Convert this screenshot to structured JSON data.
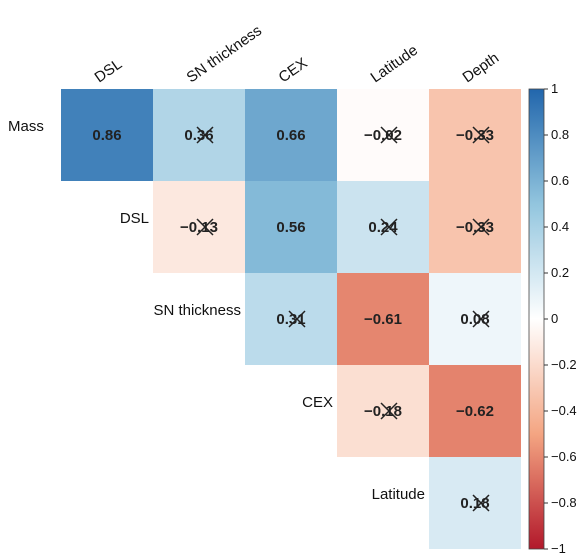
{
  "chart_data": {
    "type": "heatmap",
    "layout": "upper-triangle",
    "columns": [
      "DSL",
      "SN thickness",
      "CEX",
      "Latitude",
      "Depth"
    ],
    "rows": [
      "Mass",
      "DSL",
      "SN thickness",
      "CEX",
      "Latitude"
    ],
    "cells": [
      {
        "row": 0,
        "col": 0,
        "value": 0.86,
        "label": "0.86",
        "crossed": false
      },
      {
        "row": 0,
        "col": 1,
        "value": 0.36,
        "label": "0.36",
        "crossed": true
      },
      {
        "row": 0,
        "col": 2,
        "value": 0.66,
        "label": "0.66",
        "crossed": false
      },
      {
        "row": 0,
        "col": 3,
        "value": -0.02,
        "label": "-0.02",
        "crossed": true
      },
      {
        "row": 0,
        "col": 4,
        "value": -0.33,
        "label": "-0.33",
        "crossed": true
      },
      {
        "row": 1,
        "col": 1,
        "value": -0.13,
        "label": "-0.13",
        "crossed": true
      },
      {
        "row": 1,
        "col": 2,
        "value": 0.56,
        "label": "0.56",
        "crossed": false
      },
      {
        "row": 1,
        "col": 3,
        "value": 0.24,
        "label": "0.24",
        "crossed": true
      },
      {
        "row": 1,
        "col": 4,
        "value": -0.33,
        "label": "-0.33",
        "crossed": true
      },
      {
        "row": 2,
        "col": 2,
        "value": 0.31,
        "label": "0.31",
        "crossed": true
      },
      {
        "row": 2,
        "col": 3,
        "value": -0.61,
        "label": "-0.61",
        "crossed": false
      },
      {
        "row": 2,
        "col": 4,
        "value": 0.08,
        "label": "0.08",
        "crossed": true
      },
      {
        "row": 3,
        "col": 3,
        "value": -0.18,
        "label": "-0.18",
        "crossed": true
      },
      {
        "row": 3,
        "col": 4,
        "value": -0.62,
        "label": "-0.62",
        "crossed": false
      },
      {
        "row": 4,
        "col": 4,
        "value": 0.18,
        "label": "0.18",
        "crossed": true
      }
    ],
    "colorbar": {
      "range": [
        -1,
        1
      ],
      "ticks": [
        1,
        0.8,
        0.6,
        0.4,
        0.2,
        0,
        -0.2,
        -0.4,
        -0.6,
        -0.8,
        -1
      ],
      "tick_labels": [
        "1",
        "0.8",
        "0.6",
        "0.4",
        "0.2",
        "0",
        "−0.2",
        "−0.4",
        "−0.6",
        "−0.8",
        "−1"
      ],
      "colors": {
        "positive": "#2166ac",
        "zero": "#ffffff",
        "negative": "#b2182b"
      }
    },
    "title": "",
    "xlabel": "",
    "ylabel": ""
  }
}
